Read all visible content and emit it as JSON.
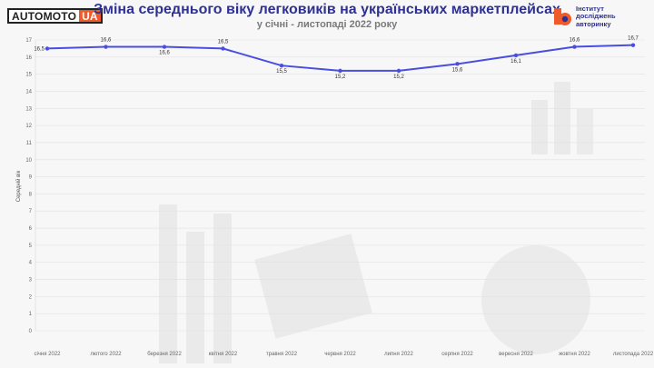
{
  "header": {
    "logo_text": "AUTOMOTO",
    "logo_badge": "UA",
    "title": "Зміна середнього віку легковиків на українських маркетплейсах",
    "subtitle": "у січні - листопаді 2022 року",
    "institute": [
      "Інститут",
      "досліджень",
      "авторинку"
    ]
  },
  "colors": {
    "line": "#4a4ee0",
    "title": "#2e3192",
    "accent": "#ef5a2a"
  },
  "chart_data": {
    "type": "line",
    "title": "Зміна середнього віку легковиків на українських маркетплейсах",
    "subtitle": "у січні - листопаді 2022 року",
    "xlabel": "",
    "ylabel": "Середній вік",
    "categories": [
      "січня 2022",
      "лютого 2022",
      "березня 2022",
      "квітня 2022",
      "травня 2022",
      "червня 2022",
      "липня 2022",
      "серпня 2022",
      "вересня 2022",
      "жовтня 2022",
      "листопада 2022"
    ],
    "values": [
      16.5,
      16.6,
      16.6,
      16.5,
      15.5,
      15.2,
      15.2,
      15.6,
      16.1,
      16.6,
      16.7
    ],
    "data_labels": [
      "16,5",
      "16,6",
      "16,6",
      "16,5",
      "15,5",
      "15,2",
      "15,2",
      "15,6",
      "16,1",
      "16,6",
      "16,7"
    ],
    "yticks": [
      "0",
      "1",
      "2",
      "3",
      "4",
      "5",
      "6",
      "7",
      "8",
      "9",
      "10",
      "11",
      "12",
      "13",
      "14",
      "15",
      "16",
      "17"
    ],
    "ylim": [
      0,
      17
    ],
    "grid": true,
    "legend": "none"
  }
}
